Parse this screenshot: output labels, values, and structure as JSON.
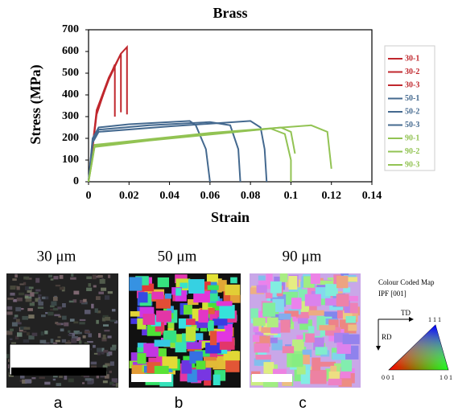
{
  "chart_data": {
    "type": "line",
    "title": "Brass",
    "x_label": "Strain",
    "y_label": "Stress (MPa)",
    "xlim": [
      0,
      0.14
    ],
    "xticks": [
      0,
      0.02,
      0.04,
      0.06,
      0.08,
      0.1,
      0.12,
      0.14
    ],
    "ylim": [
      0,
      700
    ],
    "yticks": [
      0,
      100,
      200,
      300,
      400,
      500,
      600,
      700
    ],
    "legend": "right",
    "series": [
      {
        "name": "30-1",
        "color": "#c0272d",
        "x": [
          0,
          0.004,
          0.01,
          0.016,
          0.019,
          0.019
        ],
        "values": [
          0,
          330,
          480,
          590,
          620,
          310
        ]
      },
      {
        "name": "30-2",
        "color": "#c0272d",
        "x": [
          0,
          0.004,
          0.01,
          0.016,
          0.016
        ],
        "values": [
          0,
          320,
          470,
          590,
          320
        ]
      },
      {
        "name": "30-3",
        "color": "#c0272d",
        "x": [
          0,
          0.004,
          0.009,
          0.013,
          0.013
        ],
        "values": [
          0,
          310,
          450,
          540,
          300
        ]
      },
      {
        "name": "50-1",
        "color": "#44698f",
        "x": [
          0,
          0.002,
          0.005,
          0.02,
          0.05,
          0.053,
          0.058,
          0.06
        ],
        "values": [
          0,
          200,
          250,
          265,
          280,
          260,
          150,
          0
        ]
      },
      {
        "name": "50-2",
        "color": "#44698f",
        "x": [
          0,
          0.002,
          0.005,
          0.03,
          0.06,
          0.07,
          0.074,
          0.075
        ],
        "values": [
          0,
          190,
          240,
          260,
          275,
          260,
          150,
          0
        ]
      },
      {
        "name": "50-3",
        "color": "#44698f",
        "x": [
          0,
          0.002,
          0.005,
          0.04,
          0.08,
          0.085,
          0.087,
          0.088
        ],
        "values": [
          0,
          180,
          230,
          255,
          280,
          250,
          150,
          0
        ]
      },
      {
        "name": "90-1",
        "color": "#92c353",
        "x": [
          0,
          0.003,
          0.03,
          0.09,
          0.097,
          0.1,
          0.1
        ],
        "values": [
          0,
          160,
          190,
          245,
          220,
          100,
          0
        ]
      },
      {
        "name": "90-2",
        "color": "#92c353",
        "x": [
          0,
          0.003,
          0.05,
          0.095,
          0.1,
          0.102
        ],
        "values": [
          0,
          165,
          210,
          250,
          230,
          130
        ]
      },
      {
        "name": "90-3",
        "color": "#92c353",
        "x": [
          0,
          0.003,
          0.06,
          0.11,
          0.118,
          0.12
        ],
        "values": [
          0,
          170,
          225,
          260,
          230,
          60
        ]
      }
    ]
  },
  "panels": [
    {
      "label": "30 μm",
      "letter": "a"
    },
    {
      "label": "50 μm",
      "letter": "b"
    },
    {
      "label": "90 μm",
      "letter": "c"
    }
  ],
  "key": {
    "title": "Colour Coded Map",
    "subtitle": "IPF [001]",
    "td": "TD",
    "rd": "RD",
    "corners": [
      "1 1 1",
      "0 0 1",
      "1 0 1"
    ]
  }
}
